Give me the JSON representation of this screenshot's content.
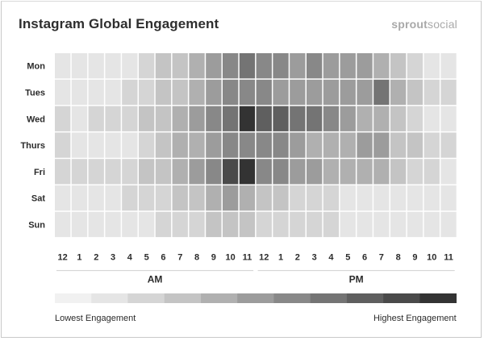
{
  "header": {
    "title": "Instagram Global Engagement",
    "brand_bold": "sprout",
    "brand_light": "social"
  },
  "chart_data": {
    "type": "heatmap",
    "title": "Instagram Global Engagement",
    "rows": [
      "Mon",
      "Tues",
      "Wed",
      "Thurs",
      "Fri",
      "Sat",
      "Sun"
    ],
    "columns": [
      "12",
      "1",
      "2",
      "3",
      "4",
      "5",
      "6",
      "7",
      "8",
      "9",
      "10",
      "11",
      "12",
      "1",
      "2",
      "3",
      "4",
      "5",
      "6",
      "7",
      "8",
      "9",
      "10",
      "11"
    ],
    "periods": [
      {
        "label": "AM",
        "from": 0,
        "to": 11
      },
      {
        "label": "PM",
        "from": 12,
        "to": 23
      }
    ],
    "scale_min_label": "Lowest Engagement",
    "scale_max_label": "Highest Engagement",
    "scale_levels": 11,
    "values": [
      [
        1,
        1,
        1,
        1,
        1,
        2,
        3,
        3,
        4,
        5,
        6,
        7,
        6,
        6,
        5,
        6,
        5,
        5,
        5,
        4,
        3,
        2,
        1,
        1
      ],
      [
        1,
        1,
        1,
        1,
        2,
        2,
        3,
        3,
        4,
        5,
        6,
        6,
        6,
        5,
        5,
        5,
        5,
        5,
        5,
        7,
        4,
        3,
        2,
        2
      ],
      [
        2,
        1,
        2,
        2,
        2,
        3,
        3,
        4,
        5,
        6,
        7,
        10,
        8,
        8,
        7,
        7,
        6,
        5,
        4,
        4,
        3,
        2,
        1,
        1
      ],
      [
        2,
        1,
        1,
        1,
        1,
        2,
        3,
        4,
        4,
        5,
        6,
        6,
        6,
        6,
        5,
        4,
        4,
        4,
        5,
        5,
        3,
        3,
        2,
        2
      ],
      [
        2,
        2,
        2,
        2,
        2,
        3,
        3,
        4,
        5,
        6,
        9,
        10,
        6,
        6,
        5,
        5,
        4,
        4,
        4,
        4,
        3,
        2,
        2,
        1
      ],
      [
        1,
        1,
        1,
        1,
        2,
        2,
        2,
        3,
        3,
        4,
        5,
        4,
        3,
        3,
        2,
        2,
        2,
        1,
        1,
        1,
        1,
        1,
        1,
        1
      ],
      [
        1,
        1,
        1,
        1,
        1,
        1,
        2,
        2,
        2,
        3,
        3,
        3,
        2,
        2,
        2,
        2,
        2,
        1,
        1,
        1,
        1,
        1,
        1,
        1
      ]
    ],
    "colors": [
      "#f1f1f1",
      "#e5e5e5",
      "#d5d5d5",
      "#c4c4c4",
      "#b0b0b0",
      "#9c9c9c",
      "#888888",
      "#747474",
      "#5f5f5f",
      "#4a4a4a",
      "#333333"
    ],
    "grid": true,
    "legend": "bottom"
  }
}
